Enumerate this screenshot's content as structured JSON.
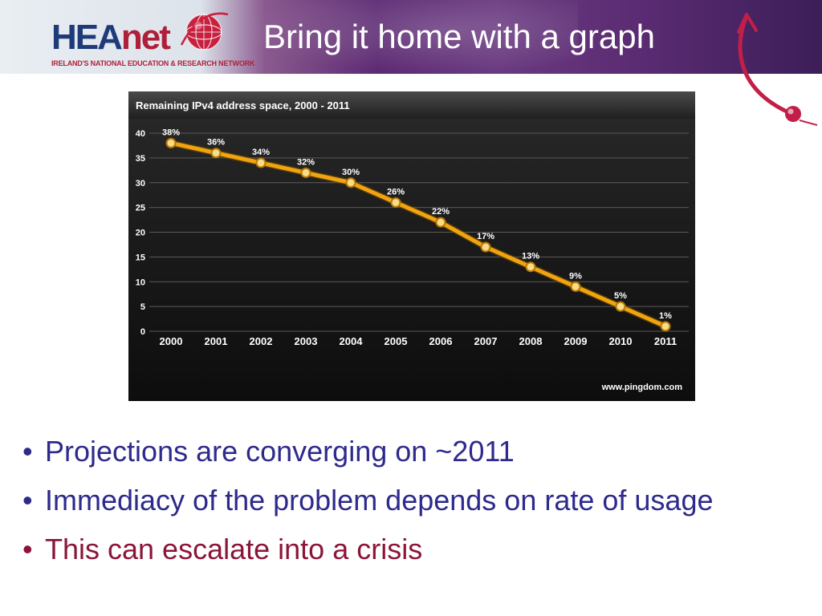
{
  "header": {
    "logo": {
      "name": "HEAnet",
      "name_part1": "HEA",
      "name_part2": "net",
      "tagline": "IRELAND'S NATIONAL EDUCATION & RESEARCH NETWORK"
    },
    "title": "Bring it home with a graph"
  },
  "chart_data": {
    "type": "line",
    "title": "Remaining IPv4 address space, 2000 - 2011",
    "x": [
      "2000",
      "2001",
      "2002",
      "2003",
      "2004",
      "2005",
      "2006",
      "2007",
      "2008",
      "2009",
      "2010",
      "2011"
    ],
    "values": [
      38,
      36,
      34,
      32,
      30,
      26,
      22,
      17,
      13,
      9,
      5,
      1
    ],
    "data_labels": [
      "38%",
      "36%",
      "34%",
      "32%",
      "30%",
      "26%",
      "22%",
      "17%",
      "13%",
      "9%",
      "5%",
      "1%"
    ],
    "y_ticks": [
      0,
      5,
      10,
      15,
      20,
      25,
      30,
      35,
      40
    ],
    "ylim": [
      0,
      40
    ],
    "grid": true,
    "legend": false,
    "source": "www.pingdom.com",
    "colors": {
      "background": "#1c1c1c",
      "line": "#f0a410",
      "marker_fill": "#f7dc8a",
      "grid": "#5a5a5a",
      "text": "#ffffff"
    }
  },
  "bullets": [
    {
      "text": "Projections are converging on ~2011",
      "color": "#2d2a8c"
    },
    {
      "text": "Immediacy of the problem depends on rate of usage",
      "color": "#2d2a8c"
    },
    {
      "text": "This can escalate into a crisis",
      "color": "#8b1538"
    }
  ],
  "colors": {
    "bullet_blue": "#2d2a8c",
    "bullet_maroon": "#8b1538",
    "brand_blue": "#1f3a78",
    "brand_red": "#b01f3a"
  }
}
